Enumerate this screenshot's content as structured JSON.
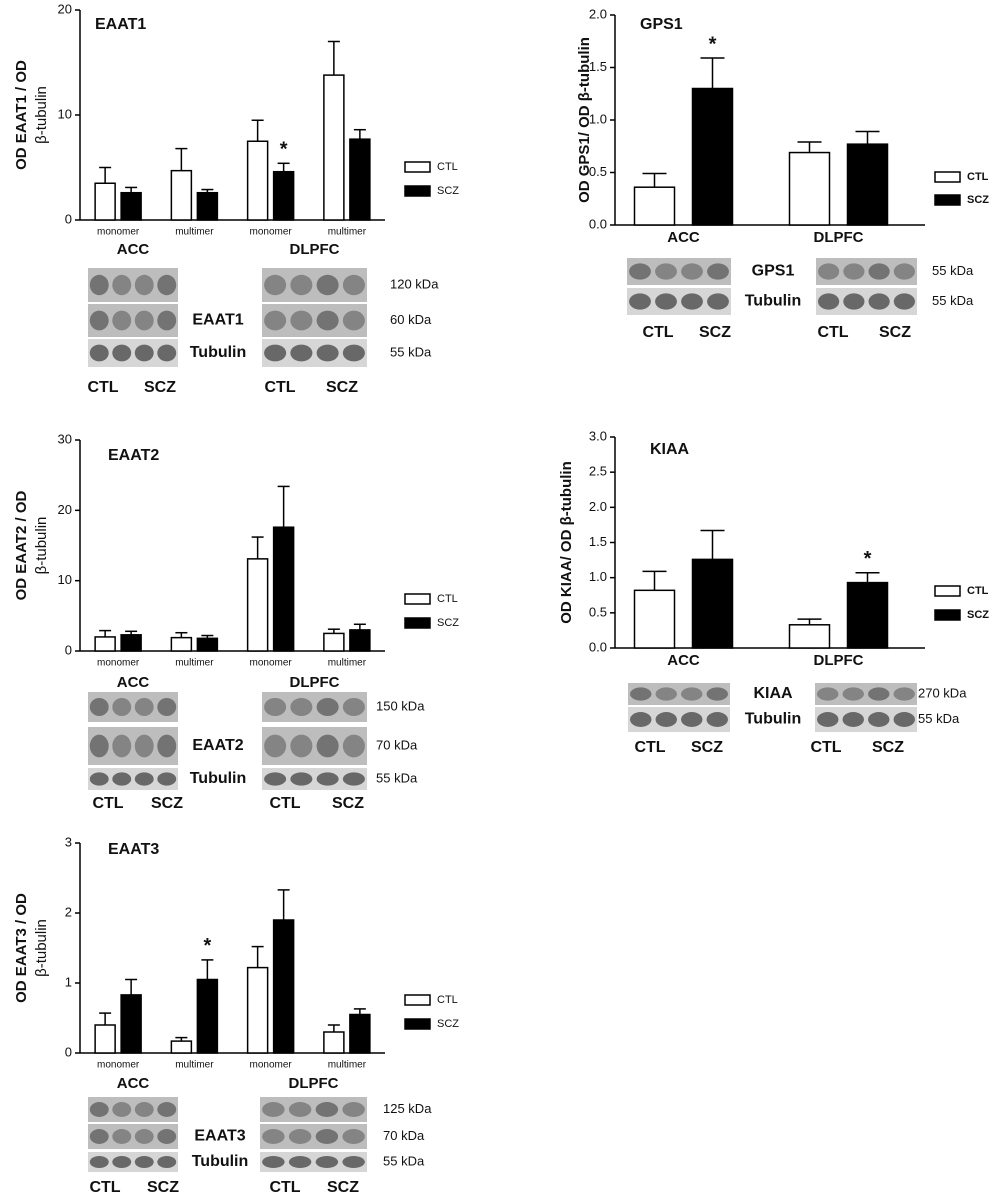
{
  "chart_data": [
    {
      "type": "bar",
      "title": "EAAT1",
      "ylabel": [
        "OD EAAT1 / OD",
        "β-tubulin"
      ],
      "categories": [
        "monomer",
        "multimer",
        "monomer",
        "multimer"
      ],
      "series": [
        {
          "name": "CTL",
          "color": "#ffffff",
          "values": [
            3.5,
            4.7,
            7.5,
            13.8
          ],
          "errors": [
            1.5,
            2.1,
            2.0,
            3.2
          ],
          "annotations": [
            null,
            null,
            null,
            null
          ]
        },
        {
          "name": "SCZ",
          "color": "#000000",
          "values": [
            2.6,
            2.6,
            4.6,
            7.7
          ],
          "errors": [
            0.5,
            0.3,
            0.8,
            0.9
          ],
          "annotations": [
            null,
            null,
            "*",
            null
          ]
        }
      ],
      "ylim": [
        0,
        20
      ],
      "yticks": [
        0,
        10,
        20
      ],
      "blot": {
        "regions": [
          "ACC",
          "DLPFC"
        ],
        "bands": [
          "EAAT1",
          "Tubulin"
        ],
        "sizes": [
          "120 kDa",
          "60 kDa",
          "55 kDa"
        ],
        "lanes": [
          "CTL",
          "SCZ",
          "CTL",
          "SCZ"
        ]
      }
    },
    {
      "type": "bar",
      "title": "EAAT2",
      "ylabel": [
        "OD EAAT2 / OD",
        "β-tubulin"
      ],
      "categories": [
        "monomer",
        "multimer",
        "monomer",
        "multimer"
      ],
      "series": [
        {
          "name": "CTL",
          "color": "#ffffff",
          "values": [
            2.0,
            1.9,
            13.1,
            2.5
          ],
          "errors": [
            0.9,
            0.7,
            3.1,
            0.6
          ],
          "annotations": [
            null,
            null,
            null,
            null
          ]
        },
        {
          "name": "SCZ",
          "color": "#000000",
          "values": [
            2.3,
            1.8,
            17.6,
            3.0
          ],
          "errors": [
            0.5,
            0.4,
            5.8,
            0.8
          ],
          "annotations": [
            null,
            null,
            null,
            null
          ]
        }
      ],
      "ylim": [
        0,
        30
      ],
      "yticks": [
        0,
        10,
        20,
        30
      ],
      "blot": {
        "regions": [
          "ACC",
          "DLPFC"
        ],
        "bands": [
          "EAAT2",
          "Tubulin"
        ],
        "sizes": [
          "150 kDa",
          "70 kDa",
          "55 kDa"
        ],
        "lanes": [
          "CTL",
          "SCZ",
          "CTL",
          "SCZ"
        ]
      }
    },
    {
      "type": "bar",
      "title": "EAAT3",
      "ylabel": [
        "OD EAAT3 / OD",
        "β-tubulin"
      ],
      "categories": [
        "monomer",
        "multimer",
        "monomer",
        "multimer"
      ],
      "series": [
        {
          "name": "CTL",
          "color": "#ffffff",
          "values": [
            0.4,
            0.17,
            1.22,
            0.3
          ],
          "errors": [
            0.17,
            0.05,
            0.3,
            0.1
          ],
          "annotations": [
            null,
            null,
            null,
            null
          ]
        },
        {
          "name": "SCZ",
          "color": "#000000",
          "values": [
            0.83,
            1.05,
            1.9,
            0.55
          ],
          "errors": [
            0.22,
            0.28,
            0.43,
            0.08
          ],
          "annotations": [
            null,
            "*",
            null,
            null
          ]
        }
      ],
      "ylim": [
        0,
        3
      ],
      "yticks": [
        0,
        1,
        2,
        3
      ],
      "blot": {
        "regions": [
          "ACC",
          "DLPFC"
        ],
        "bands": [
          "EAAT3",
          "Tubulin"
        ],
        "sizes": [
          "125 kDa",
          "70 kDa",
          "55 kDa"
        ],
        "lanes": [
          "CTL",
          "SCZ",
          "CTL",
          "SCZ"
        ]
      }
    },
    {
      "type": "bar",
      "title": "GPS1",
      "ylabel": [
        "OD GPS1/ OD β-tubulin"
      ],
      "categories": [
        "ACC",
        "DLPFC"
      ],
      "series": [
        {
          "name": "CTL",
          "color": "#ffffff",
          "values": [
            0.36,
            0.69
          ],
          "errors": [
            0.13,
            0.1
          ],
          "annotations": [
            null,
            null
          ]
        },
        {
          "name": "SCZ",
          "color": "#000000",
          "values": [
            1.3,
            0.77
          ],
          "errors": [
            0.29,
            0.12
          ],
          "annotations": [
            "*",
            null
          ]
        }
      ],
      "ylim": [
        0,
        2
      ],
      "yticks": [
        {
          "value": 0,
          "label": "0.0"
        },
        0.5,
        {
          "value": 1,
          "label": "1.0"
        },
        1.5,
        {
          "value": 2,
          "label": "2.0"
        }
      ],
      "blot": {
        "bands": [
          "GPS1",
          "Tubulin"
        ],
        "sizes": [
          "55 kDa",
          "55 kDa"
        ],
        "lanes": [
          "CTL",
          "SCZ",
          "CTL",
          "SCZ"
        ]
      }
    },
    {
      "type": "bar",
      "title": "KIAA",
      "ylabel": [
        "OD KIAA/ OD β-tubulin"
      ],
      "categories": [
        "ACC",
        "DLPFC"
      ],
      "series": [
        {
          "name": "CTL",
          "color": "#ffffff",
          "values": [
            0.82,
            0.33
          ],
          "errors": [
            0.27,
            0.08
          ],
          "annotations": [
            null,
            null
          ]
        },
        {
          "name": "SCZ",
          "color": "#000000",
          "values": [
            1.26,
            0.93
          ],
          "errors": [
            0.41,
            0.14
          ],
          "annotations": [
            null,
            "*"
          ]
        }
      ],
      "ylim": [
        0,
        3
      ],
      "yticks": [
        {
          "value": 0,
          "label": "0.0"
        },
        0.5,
        {
          "value": 1,
          "label": "1.0"
        },
        1.5,
        {
          "value": 2,
          "label": "2.0"
        },
        2.5,
        {
          "value": 3,
          "label": "3.0"
        }
      ],
      "blot": {
        "bands": [
          "KIAA",
          "Tubulin"
        ],
        "sizes": [
          "270 kDa",
          "55 kDa"
        ],
        "lanes": [
          "CTL",
          "SCZ",
          "CTL",
          "SCZ"
        ]
      }
    }
  ]
}
